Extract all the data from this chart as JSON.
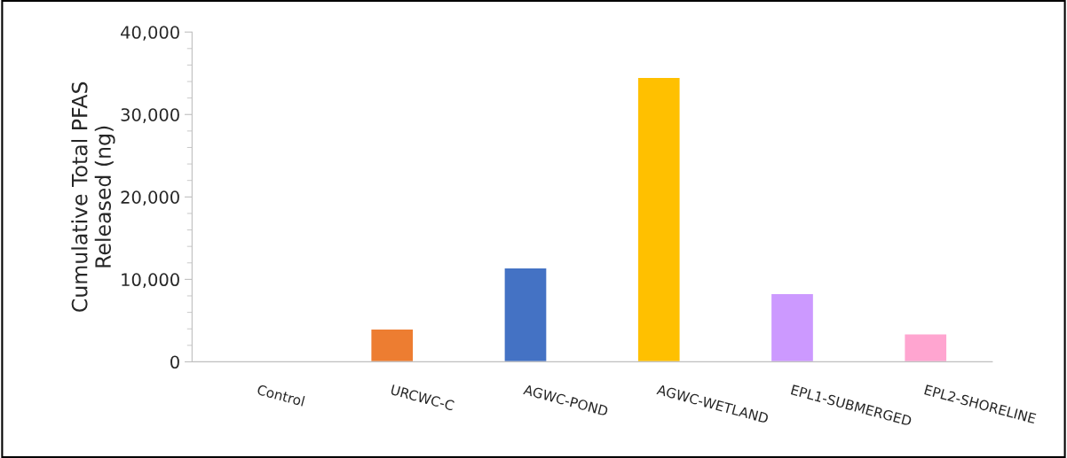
{
  "chart_data": {
    "type": "bar",
    "ylabel": "Cumulative Total PFAS\nReleased (ng)",
    "categories": [
      "Control",
      "URCWC-C",
      "AGWC-POND",
      "AGWC-WETLAND",
      "EPL1-SUBMERGED",
      "EPL2-SHORELINE"
    ],
    "values": [
      0,
      4000,
      11400,
      34500,
      8300,
      3400
    ],
    "colors": [
      "#ffffff",
      "#ed7d31",
      "#4472c4",
      "#ffc000",
      "#cc99ff",
      "#ffa5d0"
    ],
    "ylim": [
      0,
      40000
    ],
    "yticks": [
      {
        "value": 0,
        "label": "0"
      },
      {
        "value": 10000,
        "label": "10,000"
      },
      {
        "value": 20000,
        "label": "20,000"
      },
      {
        "value": 30000,
        "label": "30,000"
      },
      {
        "value": 40000,
        "label": "40,000"
      }
    ],
    "grid": false,
    "legend": false
  }
}
